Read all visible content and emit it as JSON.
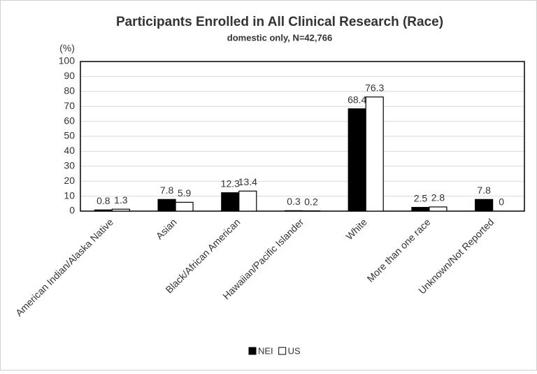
{
  "chart_data": {
    "type": "bar",
    "title": "Participants Enrolled in All Clinical Research (Race)",
    "subtitle": "domestic only, N=42,766",
    "y_label": "(%)",
    "categories": [
      "American Indian/Alaska Native",
      "Asian",
      "Black/African American",
      "Hawaiian/Pacific Islander",
      "White",
      "More than one race",
      "Unknown/Not Reported"
    ],
    "series": [
      {
        "name": "NEI",
        "color": "#000000",
        "values": [
          0.8,
          7.8,
          12.3,
          0.3,
          68.4,
          2.5,
          7.8
        ]
      },
      {
        "name": "US",
        "color": "#ffffff",
        "values": [
          1.3,
          5.9,
          13.4,
          0.2,
          76.3,
          2.8,
          0
        ]
      }
    ],
    "ylim": [
      0,
      100
    ],
    "yticks": [
      0,
      10,
      20,
      30,
      40,
      50,
      60,
      70,
      80,
      90,
      100
    ],
    "grid": true,
    "legend": "bottom"
  }
}
